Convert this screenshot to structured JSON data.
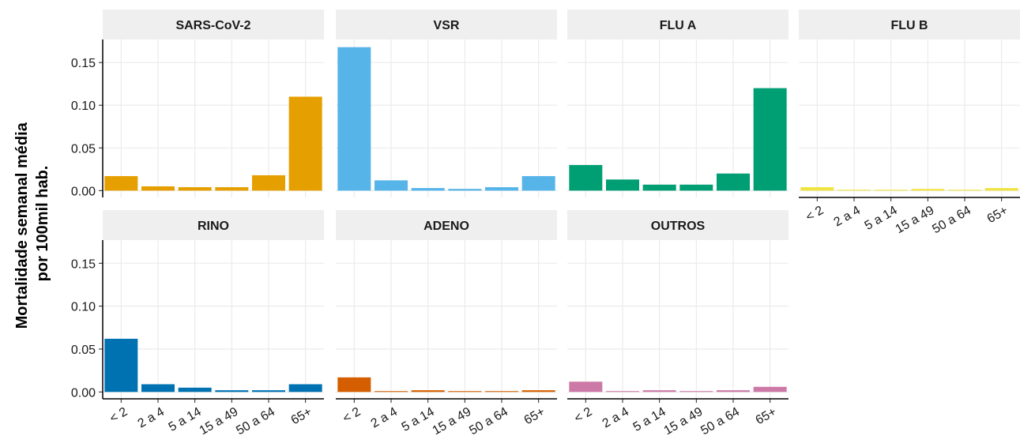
{
  "chart_data": [
    {
      "type": "bar",
      "title": "SARS-CoV-2",
      "ylabel": [
        "Mortalidade  semanal média",
        "por 100mil hab."
      ],
      "categories": [
        "< 2",
        "2 a 4",
        "5 a 14",
        "15 a 49",
        "50 a 64",
        "65+"
      ],
      "values": [
        0.017,
        0.005,
        0.004,
        0.004,
        0.018,
        0.11
      ],
      "color": "#E69F00",
      "ylim": [
        -0.008,
        0.177
      ],
      "yticks": [
        {
          "value": 0,
          "label": "0.00"
        },
        {
          "value": 0.05,
          "label": "0.05"
        },
        {
          "value": 0.1,
          "label": "0.10"
        },
        {
          "value": 0.15,
          "label": "0.15"
        }
      ],
      "grid": true
    },
    {
      "type": "bar",
      "title": "VSR",
      "categories": [
        "< 2",
        "2 a 4",
        "5 a 14",
        "15 a 49",
        "50 a 64",
        "65+"
      ],
      "values": [
        0.168,
        0.012,
        0.003,
        0.002,
        0.004,
        0.017
      ],
      "color": "#56B4E9",
      "ylim": [
        -0.008,
        0.177
      ],
      "yticks": [
        0,
        0.05,
        0.1,
        0.15
      ],
      "grid": true
    },
    {
      "type": "bar",
      "title": "FLU A",
      "categories": [
        "< 2",
        "2 a 4",
        "5 a 14",
        "15 a 49",
        "50 a 64",
        "65+"
      ],
      "values": [
        0.03,
        0.013,
        0.007,
        0.007,
        0.02,
        0.12
      ],
      "color": "#009E73",
      "ylim": [
        -0.008,
        0.177
      ],
      "yticks": [
        0,
        0.05,
        0.1,
        0.15
      ],
      "grid": true
    },
    {
      "type": "bar",
      "title": "FLU B",
      "categories": [
        "< 2",
        "2 a 4",
        "5 a 14",
        "15 a 49",
        "50 a 64",
        "65+"
      ],
      "values": [
        0.004,
        0.001,
        0.001,
        0.002,
        0.001,
        0.003
      ],
      "color": "#F0E442",
      "ylim": [
        -0.008,
        0.177
      ],
      "yticks": [
        0,
        0.05,
        0.1,
        0.15
      ],
      "grid": true
    },
    {
      "type": "bar",
      "title": "RINO",
      "categories": [
        "< 2",
        "2 a 4",
        "5 a 14",
        "15 a 49",
        "50 a 64",
        "65+"
      ],
      "values": [
        0.062,
        0.009,
        0.005,
        0.002,
        0.002,
        0.009
      ],
      "color": "#0072B2",
      "ylim": [
        -0.008,
        0.177
      ],
      "yticks": [
        {
          "value": 0,
          "label": "0.00"
        },
        {
          "value": 0.05,
          "label": "0.05"
        },
        {
          "value": 0.1,
          "label": "0.10"
        },
        {
          "value": 0.15,
          "label": "0.15"
        }
      ],
      "grid": true
    },
    {
      "type": "bar",
      "title": "ADENO",
      "categories": [
        "< 2",
        "2 a 4",
        "5 a 14",
        "15 a 49",
        "50 a 64",
        "65+"
      ],
      "values": [
        0.017,
        0.001,
        0.002,
        0.001,
        0.001,
        0.002
      ],
      "color": "#D55E00",
      "ylim": [
        -0.008,
        0.177
      ],
      "yticks": [
        0,
        0.05,
        0.1,
        0.15
      ],
      "grid": true
    },
    {
      "type": "bar",
      "title": "OUTROS",
      "categories": [
        "< 2",
        "2 a 4",
        "5 a 14",
        "15 a 49",
        "50 a 64",
        "65+"
      ],
      "values": [
        0.012,
        0.001,
        0.002,
        0.001,
        0.002,
        0.006
      ],
      "color": "#CC79A7",
      "ylim": [
        -0.008,
        0.177
      ],
      "yticks": [
        0,
        0.05,
        0.1,
        0.15
      ],
      "grid": true
    }
  ]
}
